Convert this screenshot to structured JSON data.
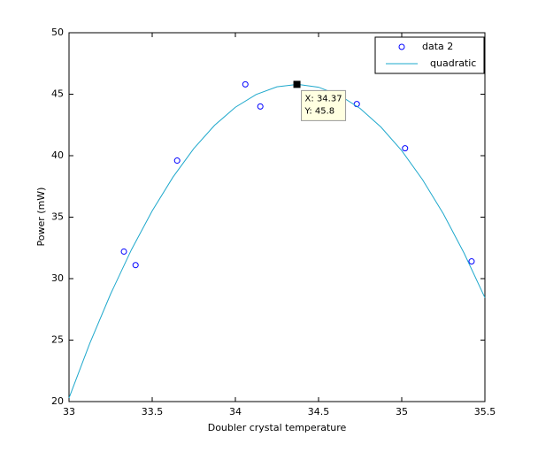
{
  "chart_data": {
    "type": "scatter",
    "x_label": "Doubler crystal temperature",
    "y_label": "Power (mW)",
    "xlim": [
      33,
      35.5
    ],
    "xticks": [
      33,
      33.5,
      34,
      34.5,
      35,
      35.5
    ],
    "ylim": [
      20,
      50
    ],
    "yticks": [
      20,
      25,
      30,
      35,
      40,
      45,
      50
    ],
    "grid": false,
    "legend": "upper right",
    "series": [
      {
        "name": "data 2",
        "type": "scatter",
        "color": "#0000ff",
        "x": [
          33.33,
          33.4,
          33.65,
          34.06,
          34.15,
          34.73,
          35.02,
          35.42
        ],
        "values": [
          32.2,
          31.1,
          39.6,
          45.8,
          44.0,
          44.2,
          40.6,
          31.4
        ]
      },
      {
        "name": "quadratic",
        "type": "line",
        "color": "#1ea8cc",
        "x": [
          33,
          33.125,
          33.25,
          33.375,
          33.5,
          33.625,
          33.75,
          33.875,
          34,
          34.125,
          34.25,
          34.375,
          34.5,
          34.625,
          34.75,
          34.875,
          35,
          35.125,
          35.25,
          35.375,
          35.5
        ],
        "values": [
          20.29,
          24.74,
          28.75,
          32.35,
          35.51,
          38.26,
          40.58,
          42.47,
          43.94,
          44.98,
          45.6,
          45.8,
          45.57,
          44.92,
          43.84,
          42.33,
          40.41,
          38.05,
          35.28,
          32.07,
          28.45
        ]
      }
    ],
    "datatip": {
      "x": 34.37,
      "y": 45.8,
      "lines": [
        "X: 34.37",
        "Y: 45.8"
      ]
    }
  }
}
